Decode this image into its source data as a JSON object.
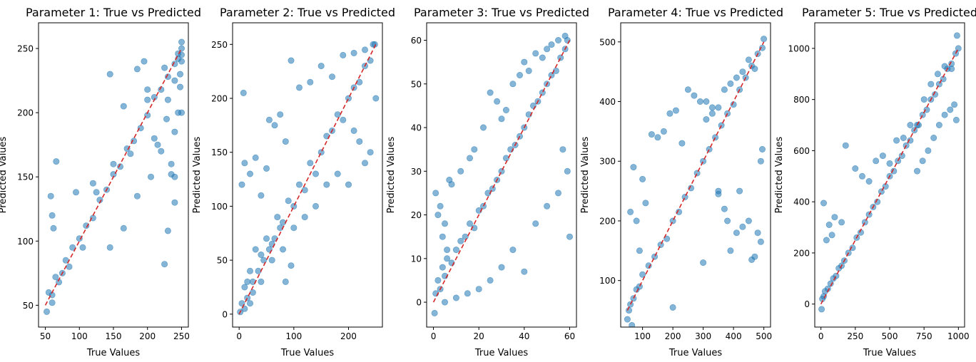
{
  "colors": {
    "points": "#1f77b4",
    "reference_line": "#d62728",
    "axes": "#000000"
  },
  "chart_data": [
    {
      "type": "scatter",
      "title": "Parameter 1: True vs Predicted",
      "xlabel": "True Values",
      "ylabel": "Predicted Values",
      "xlim": [
        40,
        260
      ],
      "ylim": [
        33,
        270
      ],
      "xticks": [
        50,
        100,
        150,
        200,
        250
      ],
      "yticks": [
        50,
        100,
        150,
        200,
        250
      ],
      "reference_line": [
        [
          50,
          50
        ],
        [
          250,
          250
        ]
      ],
      "series": [
        {
          "x": [
            52,
            55,
            60,
            65,
            70,
            80,
            90,
            100,
            110,
            120,
            130,
            140,
            150,
            160,
            170,
            180,
            190,
            200,
            210,
            220,
            230,
            240,
            245,
            250,
            60,
            75,
            95,
            120,
            145,
            165,
            185,
            205,
            225,
            240,
            248,
            250,
            58,
            66,
            62,
            145,
            165,
            185,
            195,
            200,
            210,
            215,
            220,
            230,
            235,
            240,
            245,
            250,
            230,
            240,
            250,
            248,
            245,
            60,
            85,
            105,
            125,
            150,
            175,
            200,
            225,
            250,
            240,
            235,
            228
          ],
          "y": [
            45,
            60,
            58,
            72,
            68,
            85,
            95,
            102,
            112,
            118,
            132,
            140,
            152,
            158,
            172,
            178,
            188,
            198,
            212,
            218,
            228,
            238,
            246,
            250,
            120,
            75,
            138,
            145,
            95,
            110,
            135,
            150,
            82,
            130,
            230,
            255,
            135,
            162,
            110,
            230,
            205,
            234,
            240,
            218,
            180,
            175,
            170,
            108,
            152,
            150,
            200,
            240,
            210,
            225,
            200,
            220,
            242,
            52,
            80,
            95,
            138,
            160,
            168,
            210,
            235,
            245,
            185,
            160,
            195
          ]
        }
      ]
    },
    {
      "type": "scatter",
      "title": "Parameter 2: True vs Predicted",
      "xlabel": "True Values",
      "ylabel": "Predicted Values",
      "xlim": [
        -12,
        262
      ],
      "ylim": [
        -12,
        270
      ],
      "xticks": [
        0,
        100,
        200
      ],
      "yticks": [
        0,
        50,
        100,
        150,
        200,
        250
      ],
      "reference_line": [
        [
          0,
          0
        ],
        [
          250,
          250
        ]
      ],
      "series": [
        {
          "x": [
            2,
            5,
            10,
            15,
            20,
            25,
            30,
            40,
            50,
            60,
            70,
            80,
            90,
            100,
            110,
            120,
            130,
            140,
            150,
            160,
            170,
            180,
            190,
            200,
            210,
            220,
            230,
            240,
            248,
            5,
            10,
            20,
            30,
            40,
            50,
            15,
            25,
            35,
            45,
            55,
            65,
            75,
            85,
            95,
            8,
            95,
            110,
            130,
            150,
            170,
            190,
            210,
            230,
            245,
            250,
            240,
            230,
            220,
            210,
            200,
            180,
            160,
            140,
            120,
            100,
            80,
            60,
            40,
            20,
            10,
            55,
            65,
            75,
            85
          ],
          "y": [
            2,
            10,
            25,
            15,
            40,
            30,
            60,
            55,
            70,
            65,
            90,
            85,
            105,
            100,
            120,
            115,
            140,
            130,
            150,
            165,
            170,
            185,
            180,
            200,
            210,
            215,
            230,
            235,
            250,
            120,
            140,
            130,
            145,
            110,
            135,
            30,
            20,
            40,
            50,
            60,
            70,
            80,
            30,
            45,
            205,
            235,
            210,
            215,
            230,
            220,
            240,
            242,
            245,
            250,
            200,
            150,
            140,
            160,
            170,
            120,
            130,
            120,
            100,
            90,
            80,
            60,
            50,
            30,
            10,
            5,
            180,
            175,
            185,
            160
          ]
        }
      ]
    },
    {
      "type": "scatter",
      "title": "Parameter 3: True vs Predicted",
      "xlabel": "True Values",
      "ylabel": "Predicted Values",
      "xlim": [
        -3,
        63
      ],
      "ylim": [
        -5.7,
        64
      ],
      "xticks": [
        0,
        20,
        40,
        60
      ],
      "yticks": [
        0,
        10,
        20,
        30,
        40,
        50,
        60
      ],
      "reference_line": [
        [
          0,
          0
        ],
        [
          60,
          60
        ]
      ],
      "series": [
        {
          "x": [
            0.5,
            1,
            2,
            3,
            4,
            5,
            6,
            8,
            10,
            12,
            14,
            16,
            18,
            20,
            22,
            24,
            26,
            28,
            30,
            32,
            34,
            36,
            38,
            40,
            42,
            44,
            46,
            48,
            50,
            52,
            54,
            56,
            58,
            59,
            1,
            2,
            3,
            4,
            5,
            6,
            7,
            8,
            12,
            16,
            18,
            22,
            25,
            28,
            30,
            32,
            35,
            38,
            40,
            42,
            45,
            48,
            50,
            52,
            55,
            58,
            60,
            59,
            57,
            55,
            50,
            45,
            40,
            35,
            30,
            25,
            20,
            15,
            10,
            5
          ],
          "y": [
            -2.5,
            2,
            5,
            3,
            8,
            6,
            10,
            9,
            12,
            14,
            15,
            18,
            17,
            21,
            22,
            25,
            26,
            28,
            30,
            33,
            35,
            36,
            38,
            40,
            43,
            45,
            46,
            48,
            50,
            52,
            53,
            56,
            58,
            60,
            25,
            20,
            22,
            15,
            18,
            12,
            28,
            27,
            30,
            33,
            35,
            40,
            48,
            46,
            42,
            44,
            50,
            52,
            55,
            53,
            57,
            56,
            58,
            59,
            60,
            61,
            15,
            30,
            35,
            25,
            22,
            18,
            7,
            12,
            8,
            5,
            3,
            2,
            1,
            0
          ]
        }
      ]
    },
    {
      "type": "scatter",
      "title": "Parameter 4: True vs Predicted",
      "xlabel": "True Values",
      "ylabel": "Predicted Values",
      "xlim": [
        28,
        522
      ],
      "ylim": [
        22,
        532
      ],
      "xticks": [
        100,
        200,
        300,
        400,
        500
      ],
      "yticks": [
        100,
        200,
        300,
        400,
        500
      ],
      "reference_line": [
        [
          50,
          50
        ],
        [
          500,
          500
        ]
      ],
      "series": [
        {
          "x": [
            50,
            55,
            60,
            70,
            80,
            90,
            100,
            120,
            140,
            160,
            180,
            200,
            220,
            240,
            260,
            280,
            300,
            320,
            340,
            360,
            380,
            400,
            420,
            440,
            460,
            480,
            495,
            500,
            60,
            70,
            80,
            90,
            100,
            110,
            130,
            150,
            170,
            190,
            210,
            230,
            250,
            270,
            290,
            310,
            330,
            350,
            370,
            390,
            410,
            430,
            450,
            470,
            490,
            65,
            200,
            300,
            350,
            380,
            420,
            460,
            480,
            490,
            495,
            470,
            450,
            430,
            410,
            390,
            370,
            350,
            330,
            310
          ],
          "y": [
            35,
            50,
            60,
            70,
            85,
            90,
            110,
            125,
            140,
            160,
            170,
            200,
            215,
            240,
            255,
            280,
            300,
            320,
            340,
            360,
            380,
            395,
            420,
            440,
            460,
            480,
            490,
            505,
            215,
            290,
            200,
            150,
            270,
            230,
            345,
            340,
            350,
            380,
            385,
            330,
            420,
            410,
            400,
            400,
            390,
            250,
            220,
            150,
            180,
            190,
            200,
            140,
            165,
            25,
            55,
            130,
            245,
            200,
            250,
            135,
            180,
            300,
            320,
            455,
            470,
            450,
            440,
            430,
            420,
            390,
            380,
            370
          ]
        }
      ]
    },
    {
      "type": "scatter",
      "title": "Parameter 5: True vs Predicted",
      "xlabel": "True Values",
      "ylabel": "Predicted Values",
      "xlim": [
        -45,
        1045
      ],
      "ylim": [
        -90,
        1100
      ],
      "xticks": [
        0,
        250,
        500,
        750,
        1000
      ],
      "yticks": [
        0,
        200,
        400,
        600,
        800,
        1000
      ],
      "reference_line": [
        [
          0,
          0
        ],
        [
          1000,
          1000
        ]
      ],
      "series": [
        {
          "x": [
            5,
            10,
            20,
            30,
            50,
            70,
            90,
            110,
            130,
            150,
            170,
            200,
            230,
            260,
            290,
            320,
            350,
            380,
            410,
            440,
            470,
            500,
            530,
            560,
            590,
            620,
            650,
            680,
            710,
            740,
            770,
            800,
            830,
            860,
            890,
            920,
            950,
            980,
            1000,
            20,
            40,
            60,
            80,
            100,
            150,
            180,
            250,
            300,
            350,
            400,
            450,
            500,
            550,
            600,
            650,
            700,
            750,
            800,
            850,
            900,
            950,
            990,
            985,
            970,
            940,
            900,
            860,
            820,
            780,
            740,
            700
          ],
          "y": [
            -20,
            20,
            30,
            50,
            60,
            80,
            100,
            110,
            140,
            150,
            170,
            200,
            220,
            260,
            280,
            320,
            350,
            380,
            400,
            440,
            460,
            500,
            520,
            560,
            580,
            620,
            640,
            680,
            700,
            740,
            760,
            800,
            820,
            860,
            880,
            920,
            940,
            980,
            1000,
            395,
            250,
            310,
            270,
            340,
            320,
            620,
            530,
            500,
            480,
            560,
            580,
            550,
            640,
            650,
            700,
            700,
            800,
            860,
            900,
            930,
            920,
            1050,
            720,
            780,
            760,
            740,
            700,
            650,
            600,
            560,
            520
          ]
        }
      ]
    }
  ]
}
